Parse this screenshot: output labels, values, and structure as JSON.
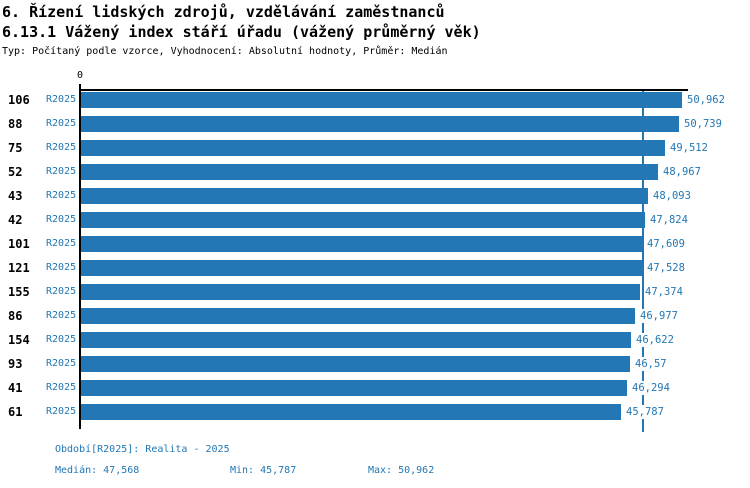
{
  "colors": {
    "bar_blue": "#2277b4",
    "blue_text": "#2277b4",
    "black_text": "#000000"
  },
  "chart_data": {
    "type": "bar",
    "orientation": "horizontal",
    "title": "6. Řízení lidských zdrojů, vzdělávání zaměstnanců",
    "subtitle": "6.13.1 Vážený index stáří úřadu (vážený průměrný věk)",
    "meta_line": "Typ: Počítaný podle vzorce, Vyhodnocení: Absolutní hodnoty, Průměr: Medián",
    "series_name": "R2025",
    "axis": {
      "origin_tick_label": "0",
      "xlim": [
        0,
        50.962
      ],
      "grid": false
    },
    "legend_position": "none",
    "rows": [
      {
        "category": "106",
        "period": "R2025",
        "value": 50.962,
        "label": "50,962"
      },
      {
        "category": "88",
        "period": "R2025",
        "value": 50.739,
        "label": "50,739"
      },
      {
        "category": "75",
        "period": "R2025",
        "value": 49.512,
        "label": "49,512"
      },
      {
        "category": "52",
        "period": "R2025",
        "value": 48.967,
        "label": "48,967"
      },
      {
        "category": "43",
        "period": "R2025",
        "value": 48.093,
        "label": "48,093"
      },
      {
        "category": "42",
        "period": "R2025",
        "value": 47.824,
        "label": "47,824"
      },
      {
        "category": "101",
        "period": "R2025",
        "value": 47.609,
        "label": "47,609"
      },
      {
        "category": "121",
        "period": "R2025",
        "value": 47.528,
        "label": "47,528"
      },
      {
        "category": "155",
        "period": "R2025",
        "value": 47.374,
        "label": "47,374"
      },
      {
        "category": "86",
        "period": "R2025",
        "value": 46.977,
        "label": "46,977"
      },
      {
        "category": "154",
        "period": "R2025",
        "value": 46.622,
        "label": "46,622"
      },
      {
        "category": "93",
        "period": "R2025",
        "value": 46.57,
        "label": "46,57"
      },
      {
        "category": "41",
        "period": "R2025",
        "value": 46.294,
        "label": "46,294"
      },
      {
        "category": "61",
        "period": "R2025",
        "value": 45.787,
        "label": "45,787"
      }
    ],
    "stats": {
      "median": 47.568,
      "min": 45.787,
      "max": 50.962
    },
    "median_line_value": 47.568
  },
  "footer": {
    "period_line": "Období[R2025]: Realita - 2025",
    "median_label": "Medián: 47,568",
    "min_label": "Min: 45,787",
    "max_label": "Max: 50,962"
  }
}
